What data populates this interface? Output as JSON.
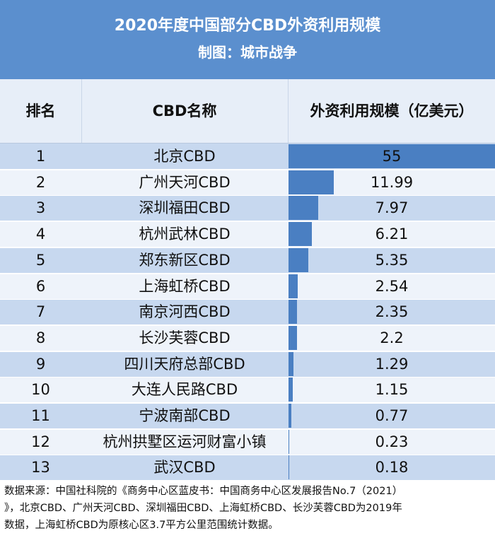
{
  "header": {
    "title": "2020年度中国部分CBD外资利用规模",
    "subtitle": "制图：城市战争"
  },
  "columns": {
    "rank": "排名",
    "name": "CBD名称",
    "value": "外资利用规模（亿美元）"
  },
  "chart_data": {
    "type": "table",
    "title": "2020年度中国部分CBD外资利用规模",
    "unit": "亿美元",
    "rows": [
      {
        "rank": "1",
        "name": "北京CBD",
        "value": 55,
        "label": "55"
      },
      {
        "rank": "2",
        "name": "广州天河CBD",
        "value": 11.99,
        "label": "11.99"
      },
      {
        "rank": "3",
        "name": "深圳福田CBD",
        "value": 7.97,
        "label": "7.97"
      },
      {
        "rank": "4",
        "name": "杭州武林CBD",
        "value": 6.21,
        "label": "6.21"
      },
      {
        "rank": "5",
        "name": "郑东新区CBD",
        "value": 5.35,
        "label": "5.35"
      },
      {
        "rank": "6",
        "name": "上海虹桥CBD",
        "value": 2.54,
        "label": "2.54"
      },
      {
        "rank": "7",
        "name": "南京河西CBD",
        "value": 2.35,
        "label": "2.35"
      },
      {
        "rank": "8",
        "name": "长沙芙蓉CBD",
        "value": 2.2,
        "label": "2.2"
      },
      {
        "rank": "9",
        "name": "四川天府总部CBD",
        "value": 1.29,
        "label": "1.29"
      },
      {
        "rank": "10",
        "name": "大连人民路CBD",
        "value": 1.15,
        "label": "1.15"
      },
      {
        "rank": "11",
        "name": "宁波南部CBD",
        "value": 0.77,
        "label": "0.77"
      },
      {
        "rank": "12",
        "name": "杭州拱墅区运河财富小镇",
        "value": 0.23,
        "label": "0.23"
      },
      {
        "rank": "13",
        "name": "武汉CBD",
        "value": 0.18,
        "label": "0.18"
      }
    ],
    "colors": {
      "bar": "#4a7fc2",
      "header": "#5b8fce"
    }
  },
  "footer": {
    "line1": "数据来源：中国社科院的《商务中心区蓝皮书：中国商务中心区发展报告No.7（2021）",
    "line2": "》，北京CBD、广州天河CBD、深圳福田CBD、上海虹桥CBD、长沙芙蓉CBD为2019年",
    "line3": "数据，上海虹桥CBD为原核心区3.7平方公里范围统计数据。"
  }
}
